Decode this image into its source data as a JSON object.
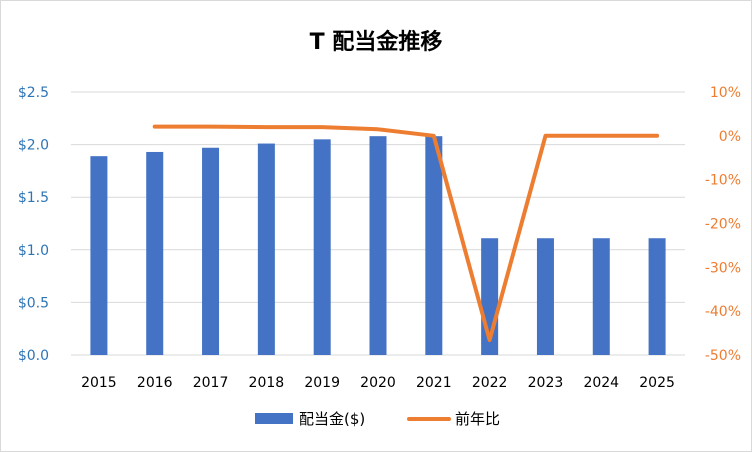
{
  "chart_data": {
    "type": "bar+line",
    "title": "T 配当金推移",
    "categories": [
      "2015",
      "2016",
      "2017",
      "2018",
      "2019",
      "2020",
      "2021",
      "2022",
      "2023",
      "2024",
      "2025"
    ],
    "series": [
      {
        "name": "配当金($)",
        "type": "bar",
        "axis": "left",
        "color": "#4472c4",
        "values": [
          1.89,
          1.93,
          1.97,
          2.01,
          2.05,
          2.08,
          2.08,
          1.11,
          1.11,
          1.11,
          1.11
        ]
      },
      {
        "name": "前年比",
        "type": "line",
        "axis": "right",
        "color": "#ed7d31",
        "values": [
          null,
          0.021,
          0.021,
          0.02,
          0.02,
          0.015,
          0.0,
          -0.466,
          0.0,
          0.0,
          0.0
        ]
      }
    ],
    "y_left": {
      "min": 0,
      "max": 2.5,
      "ticks": [
        0,
        0.5,
        1.0,
        1.5,
        2.0,
        2.5
      ],
      "tick_labels": [
        "$0.0",
        "$0.5",
        "$1.0",
        "$1.5",
        "$2.0",
        "$2.5"
      ],
      "color": "#2e75b6"
    },
    "y_right": {
      "min": -0.5,
      "max": 0.1,
      "ticks": [
        0.1,
        0,
        -0.1,
        -0.2,
        -0.3,
        -0.4,
        -0.5
      ],
      "tick_labels": [
        "10%",
        "0%",
        "-10%",
        "-20%",
        "-30%",
        "-40%",
        "-50%"
      ],
      "color": "#ed7d31"
    },
    "grid": true,
    "grid_color": "#d9d9d9",
    "legend": "bottom",
    "legend_labels": [
      "配当金($)",
      "前年比"
    ]
  }
}
